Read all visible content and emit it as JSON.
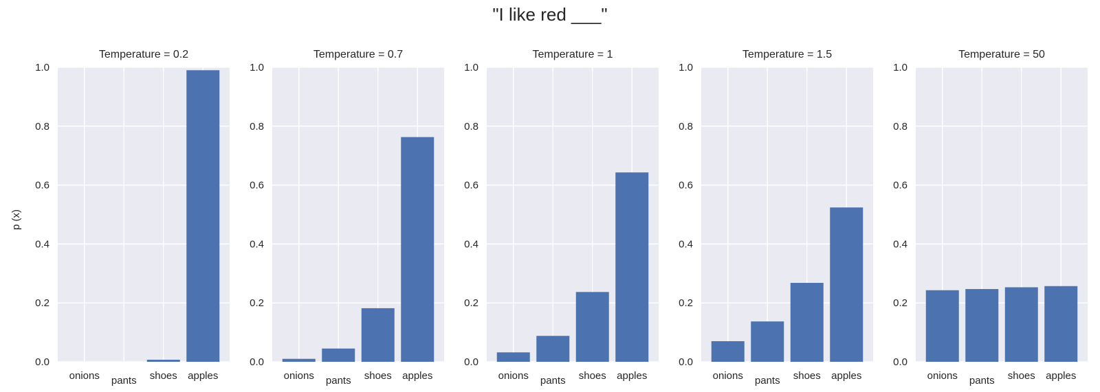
{
  "figure": {
    "suptitle": "\"I like red ___\"",
    "ylabel": "p (x)"
  },
  "chart_data": [
    {
      "type": "bar",
      "title": "Temperature = 0.2",
      "categories": [
        "onions",
        "pants",
        "shoes",
        "apples"
      ],
      "values": [
        0.0,
        0.0,
        0.007,
        0.99
      ],
      "ylabel": "p (x)",
      "xlabel": "",
      "ylim": [
        0,
        1.0
      ],
      "yticks": [
        "0.0",
        "0.2",
        "0.4",
        "0.6",
        "0.8",
        "1.0"
      ],
      "grid": true,
      "color": "#4c72b0"
    },
    {
      "type": "bar",
      "title": "Temperature = 0.7",
      "categories": [
        "onions",
        "pants",
        "shoes",
        "apples"
      ],
      "values": [
        0.01,
        0.045,
        0.182,
        0.763
      ],
      "xlabel": "",
      "ylim": [
        0,
        1.0
      ],
      "yticks": [
        "0.0",
        "0.2",
        "0.4",
        "0.6",
        "0.8",
        "1.0"
      ],
      "grid": true,
      "color": "#4c72b0"
    },
    {
      "type": "bar",
      "title": "Temperature = 1",
      "categories": [
        "onions",
        "pants",
        "shoes",
        "apples"
      ],
      "values": [
        0.032,
        0.088,
        0.237,
        0.643
      ],
      "xlabel": "",
      "ylim": [
        0,
        1.0
      ],
      "yticks": [
        "0.0",
        "0.2",
        "0.4",
        "0.6",
        "0.8",
        "1.0"
      ],
      "grid": true,
      "color": "#4c72b0"
    },
    {
      "type": "bar",
      "title": "Temperature = 1.5",
      "categories": [
        "onions",
        "pants",
        "shoes",
        "apples"
      ],
      "values": [
        0.07,
        0.137,
        0.268,
        0.524
      ],
      "xlabel": "",
      "ylim": [
        0,
        1.0
      ],
      "yticks": [
        "0.0",
        "0.2",
        "0.4",
        "0.6",
        "0.8",
        "1.0"
      ],
      "grid": true,
      "color": "#4c72b0"
    },
    {
      "type": "bar",
      "title": "Temperature = 50",
      "categories": [
        "onions",
        "pants",
        "shoes",
        "apples"
      ],
      "values": [
        0.243,
        0.247,
        0.253,
        0.257
      ],
      "xlabel": "",
      "ylim": [
        0,
        1.0
      ],
      "yticks": [
        "0.0",
        "0.2",
        "0.4",
        "0.6",
        "0.8",
        "1.0"
      ],
      "grid": true,
      "color": "#4c72b0"
    }
  ]
}
